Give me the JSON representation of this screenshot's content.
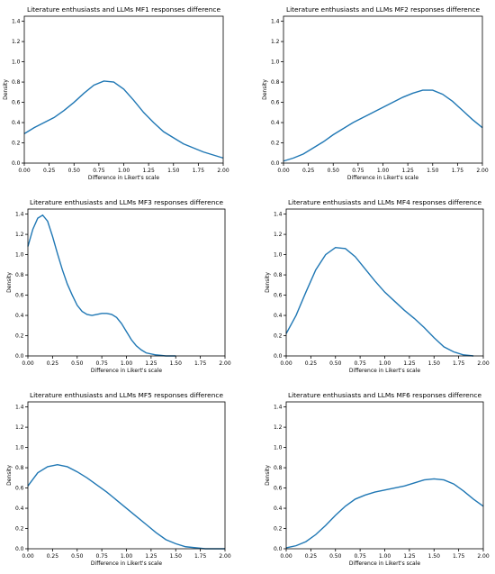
{
  "chart_data": [
    {
      "type": "line",
      "title": "Literature enthusiasts and LLMs MF1 responses difference",
      "xlabel": "Difference in Likert's scale",
      "ylabel": "Density",
      "xlim": [
        0,
        2
      ],
      "ylim": [
        0,
        1.45
      ],
      "xticks": [
        "0.00",
        "0.25",
        "0.50",
        "0.75",
        "1.00",
        "1.25",
        "1.50",
        "1.75",
        "2.00"
      ],
      "yticks": [
        "0.0",
        "0.2",
        "0.4",
        "0.6",
        "0.8",
        "1.0",
        "1.2",
        "1.4"
      ],
      "grid": false,
      "color": "#1f77b4",
      "x": [
        0.0,
        0.1,
        0.2,
        0.3,
        0.4,
        0.5,
        0.6,
        0.7,
        0.8,
        0.9,
        1.0,
        1.1,
        1.2,
        1.3,
        1.4,
        1.5,
        1.6,
        1.7,
        1.8,
        1.9,
        2.0
      ],
      "y": [
        0.29,
        0.35,
        0.4,
        0.45,
        0.52,
        0.6,
        0.69,
        0.77,
        0.81,
        0.8,
        0.73,
        0.62,
        0.5,
        0.4,
        0.31,
        0.25,
        0.19,
        0.15,
        0.11,
        0.08,
        0.05
      ]
    },
    {
      "type": "line",
      "title": "Literature enthusiasts and LLMs MF2 responses difference",
      "xlabel": "Difference in Likert's scale",
      "ylabel": "Density",
      "xlim": [
        0,
        2
      ],
      "ylim": [
        0,
        1.45
      ],
      "xticks": [
        "0.00",
        "0.25",
        "0.50",
        "0.75",
        "1.00",
        "1.25",
        "1.50",
        "1.75",
        "2.00"
      ],
      "yticks": [
        "0.0",
        "0.2",
        "0.4",
        "0.6",
        "0.8",
        "1.0",
        "1.2",
        "1.4"
      ],
      "grid": false,
      "color": "#1f77b4",
      "x": [
        0.0,
        0.1,
        0.2,
        0.3,
        0.4,
        0.5,
        0.6,
        0.7,
        0.8,
        0.9,
        1.0,
        1.1,
        1.2,
        1.3,
        1.4,
        1.5,
        1.6,
        1.7,
        1.8,
        1.9,
        2.0
      ],
      "y": [
        0.02,
        0.05,
        0.09,
        0.15,
        0.21,
        0.28,
        0.34,
        0.4,
        0.45,
        0.5,
        0.55,
        0.6,
        0.65,
        0.69,
        0.72,
        0.72,
        0.68,
        0.61,
        0.52,
        0.43,
        0.35
      ]
    },
    {
      "type": "line",
      "title": "Literature enthusiasts and LLMs MF3 responses difference",
      "xlabel": "Difference in Likert's scale",
      "ylabel": "Density",
      "xlim": [
        0,
        2
      ],
      "ylim": [
        0,
        1.45
      ],
      "xticks": [
        "0.00",
        "0.25",
        "0.50",
        "0.75",
        "1.00",
        "1.25",
        "1.50",
        "1.75",
        "2.00"
      ],
      "yticks": [
        "0.0",
        "0.2",
        "0.4",
        "0.6",
        "0.8",
        "1.0",
        "1.2",
        "1.4"
      ],
      "grid": false,
      "color": "#1f77b4",
      "x": [
        0.0,
        0.05,
        0.1,
        0.15,
        0.2,
        0.25,
        0.3,
        0.35,
        0.4,
        0.45,
        0.5,
        0.55,
        0.6,
        0.65,
        0.7,
        0.75,
        0.8,
        0.85,
        0.9,
        0.95,
        1.0,
        1.05,
        1.1,
        1.15,
        1.2,
        1.3,
        1.4,
        1.5
      ],
      "y": [
        1.08,
        1.25,
        1.36,
        1.39,
        1.33,
        1.18,
        1.01,
        0.85,
        0.71,
        0.6,
        0.5,
        0.44,
        0.41,
        0.4,
        0.41,
        0.42,
        0.42,
        0.41,
        0.38,
        0.32,
        0.24,
        0.16,
        0.1,
        0.06,
        0.03,
        0.01,
        0.0,
        0.0
      ]
    },
    {
      "type": "line",
      "title": "Literature enthusiasts and LLMs MF4 responses difference",
      "xlabel": "Difference in Likert's scale",
      "ylabel": "Density",
      "xlim": [
        0,
        2
      ],
      "ylim": [
        0,
        1.45
      ],
      "xticks": [
        "0.00",
        "0.25",
        "0.50",
        "0.75",
        "1.00",
        "1.25",
        "1.50",
        "1.75",
        "2.00"
      ],
      "yticks": [
        "0.0",
        "0.2",
        "0.4",
        "0.6",
        "0.8",
        "1.0",
        "1.2",
        "1.4"
      ],
      "grid": false,
      "color": "#1f77b4",
      "x": [
        0.0,
        0.1,
        0.2,
        0.3,
        0.4,
        0.5,
        0.6,
        0.7,
        0.8,
        0.9,
        1.0,
        1.1,
        1.2,
        1.3,
        1.4,
        1.5,
        1.6,
        1.7,
        1.8,
        1.9
      ],
      "y": [
        0.22,
        0.4,
        0.63,
        0.85,
        1.0,
        1.07,
        1.06,
        0.98,
        0.86,
        0.74,
        0.63,
        0.54,
        0.45,
        0.37,
        0.28,
        0.18,
        0.09,
        0.04,
        0.01,
        0.0
      ]
    },
    {
      "type": "line",
      "title": "Literature enthusiasts and LLMs MF5 responses difference",
      "xlabel": "Difference in Likert's scale",
      "ylabel": "Density",
      "xlim": [
        0,
        2
      ],
      "ylim": [
        0,
        1.45
      ],
      "xticks": [
        "0.00",
        "0.25",
        "0.50",
        "0.75",
        "1.00",
        "1.25",
        "1.50",
        "1.75",
        "2.00"
      ],
      "yticks": [
        "0.0",
        "0.2",
        "0.4",
        "0.6",
        "0.8",
        "1.0",
        "1.2",
        "1.4"
      ],
      "grid": false,
      "color": "#1f77b4",
      "x": [
        0.0,
        0.1,
        0.2,
        0.3,
        0.4,
        0.5,
        0.6,
        0.7,
        0.8,
        0.9,
        1.0,
        1.1,
        1.2,
        1.3,
        1.4,
        1.5,
        1.6,
        1.7,
        1.8,
        1.9,
        2.0
      ],
      "y": [
        0.62,
        0.75,
        0.81,
        0.83,
        0.81,
        0.76,
        0.7,
        0.63,
        0.56,
        0.48,
        0.4,
        0.32,
        0.24,
        0.16,
        0.09,
        0.05,
        0.02,
        0.01,
        0.0,
        0.0,
        0.0
      ]
    },
    {
      "type": "line",
      "title": "Literature enthusiasts and LLMs MF6 responses difference",
      "xlabel": "Difference in Likert's scale",
      "ylabel": "Density",
      "xlim": [
        0,
        2
      ],
      "ylim": [
        0,
        1.45
      ],
      "xticks": [
        "0.00",
        "0.25",
        "0.50",
        "0.75",
        "1.00",
        "1.25",
        "1.50",
        "1.75",
        "2.00"
      ],
      "yticks": [
        "0.0",
        "0.2",
        "0.4",
        "0.6",
        "0.8",
        "1.0",
        "1.2",
        "1.4"
      ],
      "grid": false,
      "color": "#1f77b4",
      "x": [
        0.0,
        0.1,
        0.2,
        0.3,
        0.4,
        0.5,
        0.6,
        0.7,
        0.8,
        0.9,
        1.0,
        1.1,
        1.2,
        1.3,
        1.4,
        1.5,
        1.6,
        1.7,
        1.8,
        1.9,
        2.0
      ],
      "y": [
        0.01,
        0.03,
        0.07,
        0.14,
        0.23,
        0.33,
        0.42,
        0.49,
        0.53,
        0.56,
        0.58,
        0.6,
        0.62,
        0.65,
        0.68,
        0.69,
        0.68,
        0.64,
        0.57,
        0.49,
        0.42
      ]
    }
  ]
}
